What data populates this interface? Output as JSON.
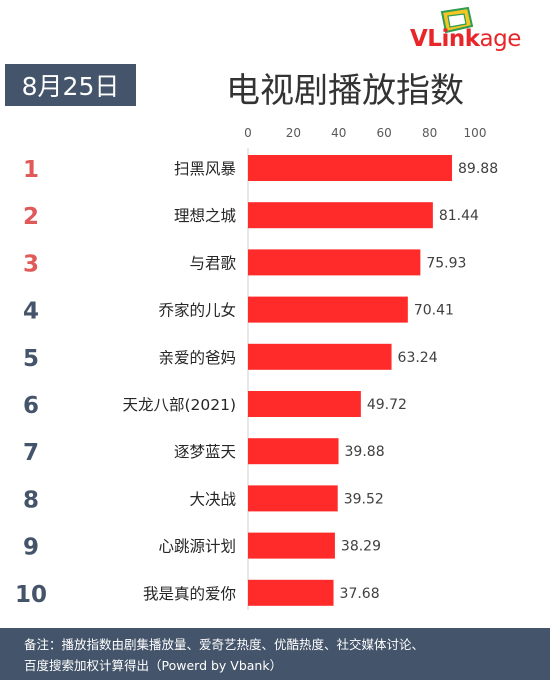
{
  "logo": {
    "text_prefix": "VLink",
    "text_suffix": "age"
  },
  "date_label": "8月25日",
  "title": "电视剧播放指数",
  "colors": {
    "bar": "#ff2a2a",
    "rank_top": "#e05a5a",
    "rank_other": "#44546a",
    "header_bg": "#44546a"
  },
  "chart_data": {
    "type": "bar",
    "orientation": "horizontal",
    "ranks": [
      "1",
      "2",
      "3",
      "4",
      "5",
      "6",
      "7",
      "8",
      "9",
      "10"
    ],
    "categories": [
      "扫黑风暴",
      "理想之城",
      "与君歌",
      "乔家的儿女",
      "亲爱的爸妈",
      "天龙八部(2021)",
      "逐梦蓝天",
      "大决战",
      "心跳源计划",
      "我是真的爱你"
    ],
    "values": [
      89.88,
      81.44,
      75.93,
      70.41,
      63.24,
      49.72,
      39.88,
      39.52,
      38.29,
      37.68
    ],
    "value_labels": [
      "89.88",
      "81.44",
      "75.93",
      "70.41",
      "63.24",
      "49.72",
      "39.88",
      "39.52",
      "38.29",
      "37.68"
    ],
    "xticks": [
      "0",
      "20",
      "40",
      "60",
      "80",
      "100"
    ],
    "xlim": [
      0,
      100
    ],
    "xaxis_position": "top",
    "title": "电视剧播放指数",
    "xlabel": "",
    "ylabel": "",
    "grid": false
  },
  "footer": {
    "line1": "备注：播放指数由剧集播放量、爱奇艺热度、优酷热度、社交媒体讨论、",
    "line2": "百度搜索加权计算得出（Powerd by Vbank）"
  }
}
